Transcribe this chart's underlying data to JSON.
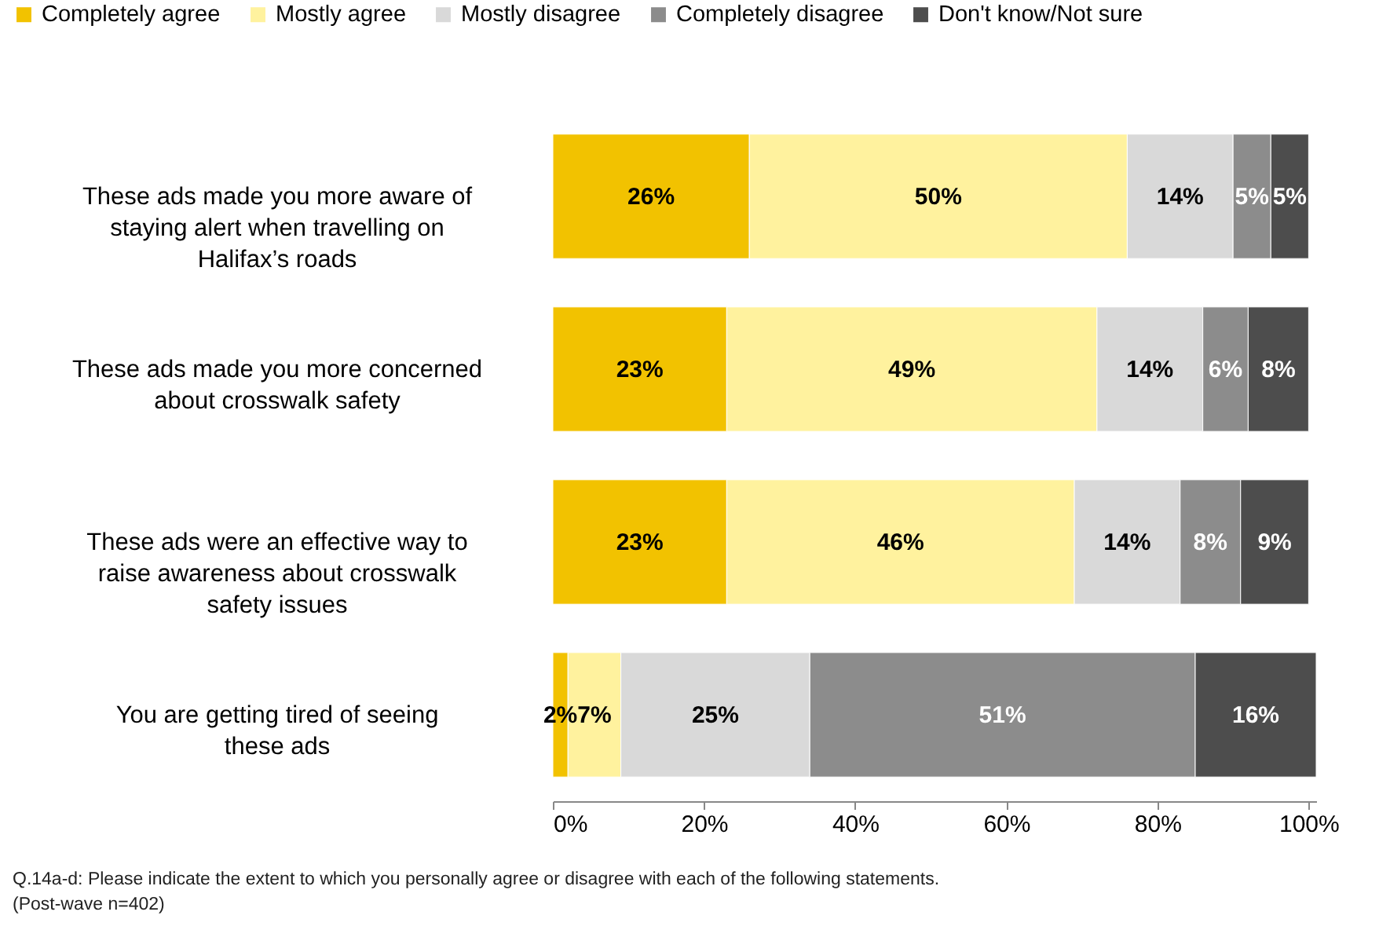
{
  "chart_data": {
    "type": "bar",
    "orientation": "horizontal",
    "stacked": true,
    "legend": "top",
    "grid": false,
    "categories": [
      "These ads made you more aware of staying alert when travelling on Halifax’s roads",
      "These ads made you more concerned about crosswalk safety",
      "These ads were an effective way to raise awareness about crosswalk safety issues",
      "You are getting tired of seeing these ads"
    ],
    "series": [
      {
        "name": "Completely agree",
        "color": "#f2c200",
        "values": [
          26,
          23,
          23,
          2
        ],
        "value_labels": [
          "26%",
          "23%",
          "23%",
          "2%"
        ]
      },
      {
        "name": "Mostly agree",
        "color": "#fff29e",
        "values": [
          50,
          49,
          46,
          7
        ],
        "value_labels": [
          "50%",
          "49%",
          "46%",
          "7%"
        ]
      },
      {
        "name": "Mostly disagree",
        "color": "#d9d9d9",
        "values": [
          14,
          14,
          14,
          25
        ],
        "value_labels": [
          "14%",
          "14%",
          "14%",
          "25%"
        ]
      },
      {
        "name": "Completely disagree",
        "color": "#8c8c8c",
        "values": [
          5,
          6,
          8,
          51
        ],
        "value_labels": [
          "5%",
          "6%",
          "8%",
          "51%"
        ]
      },
      {
        "name": "Don't know/Not sure",
        "color": "#4d4d4d",
        "values": [
          5,
          8,
          9,
          16
        ],
        "value_labels": [
          "5%",
          "8%",
          "9%",
          "16%"
        ]
      }
    ],
    "xlim": [
      0,
      101
    ],
    "xticks": [
      {
        "value": 0,
        "label": "0%"
      },
      {
        "value": 20,
        "label": "20%"
      },
      {
        "value": 40,
        "label": "40%"
      },
      {
        "value": 60,
        "label": "60%"
      },
      {
        "value": 80,
        "label": "80%"
      },
      {
        "value": 100,
        "label": "100%"
      }
    ],
    "annotations": [
      "Q.14a-d: Please indicate the extent to which you personally agree or disagree with each of the following statements.",
      "(Post-wave n=402)"
    ]
  }
}
